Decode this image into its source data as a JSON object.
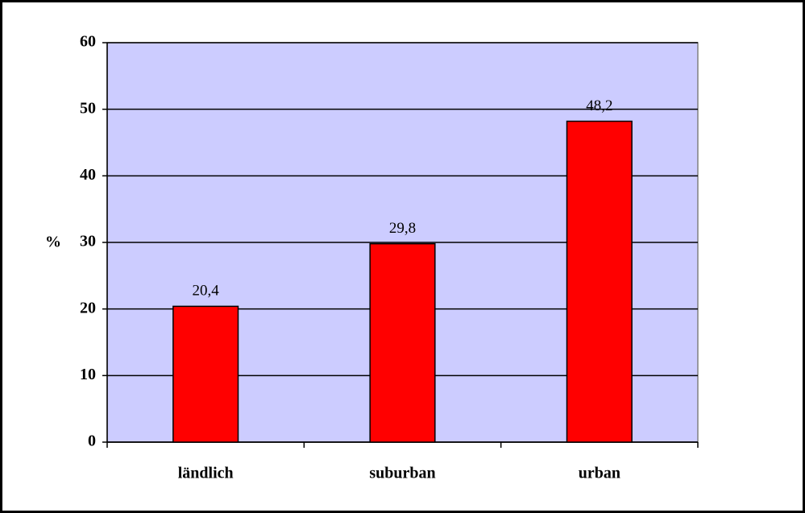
{
  "chart_data": {
    "type": "bar",
    "y_label": "%",
    "categories": [
      "ländlich",
      "suburban",
      "urban"
    ],
    "values": [
      20.4,
      29.8,
      48.2
    ],
    "value_labels": [
      "20,4",
      "29,8",
      "48,2"
    ],
    "color": "#ff0000",
    "plot_background": "#ccccff",
    "ylim": [
      0,
      60
    ],
    "yticks": [
      0,
      10,
      20,
      30,
      40,
      50,
      60
    ],
    "grid": true
  }
}
